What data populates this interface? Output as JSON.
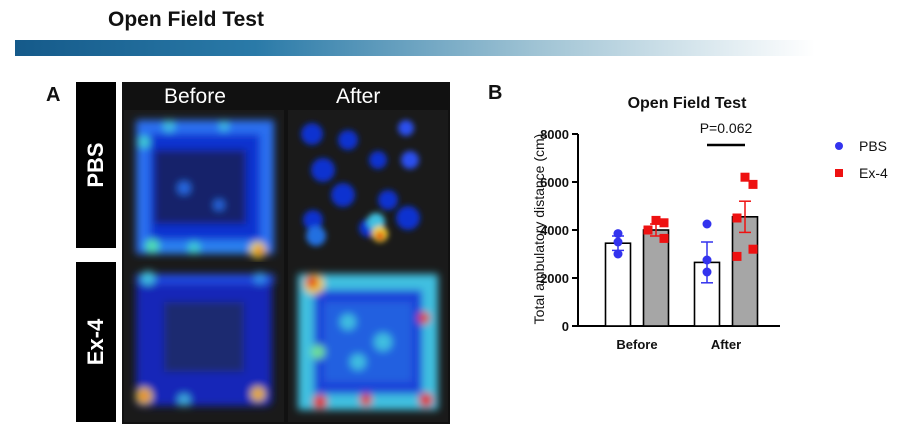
{
  "header": {
    "title": "Open Field Test"
  },
  "panel_a": {
    "letter": "A",
    "columns": [
      "Before",
      "After"
    ],
    "rows": [
      "PBS",
      "Ex-4"
    ]
  },
  "panel_b": {
    "letter": "B"
  },
  "colors": {
    "pbs": "#3333ee",
    "ex4": "#ee1111",
    "ex4_bar": "#a6a6a6",
    "pbs_bar": "#ffffff"
  },
  "chart_data": {
    "type": "bar",
    "title": "Open Field Test",
    "ylabel": "Total ambulatory distance (cm)",
    "xlabel": "",
    "categories": [
      "Before",
      "After"
    ],
    "ylim": [
      0,
      8000
    ],
    "yticks": [
      "0",
      "2000",
      "4000",
      "6000",
      "8000"
    ],
    "series": [
      {
        "name": "PBS",
        "values": [
          3450,
          2650
        ],
        "sem": [
          300,
          850
        ],
        "points": [
          [
            3850,
            3500,
            3000
          ],
          [
            4250,
            2750,
            2250
          ]
        ]
      },
      {
        "name": "Ex-4",
        "values": [
          4000,
          4550
        ],
        "sem": [
          250,
          650
        ],
        "points": [
          [
            4400,
            4300,
            4000,
            3650
          ],
          [
            6200,
            5900,
            4500,
            3200,
            2900
          ]
        ]
      }
    ],
    "annotation": {
      "text": "P=0.062",
      "category": "After"
    },
    "legend": [
      "PBS",
      "Ex-4"
    ],
    "legend_position": "right"
  }
}
